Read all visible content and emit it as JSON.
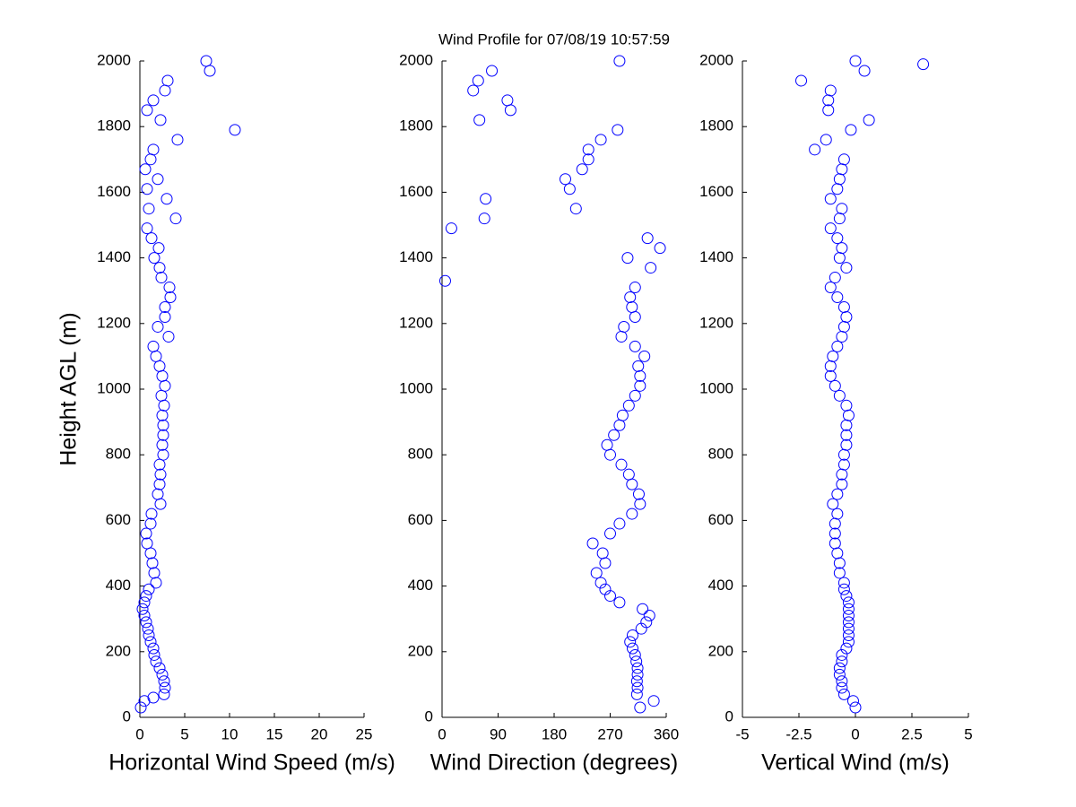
{
  "chart_data": [
    {
      "type": "scatter",
      "x_label": "Horizontal Wind Speed (m/s)",
      "y_label": "Height AGL (m)",
      "color": "#0000ff",
      "xlim": [
        0,
        25
      ],
      "xticks": [
        0,
        5,
        10,
        15,
        20,
        25
      ],
      "ylim": [
        0,
        2000
      ],
      "yticks": [
        0,
        200,
        400,
        600,
        800,
        1000,
        1200,
        1400,
        1600,
        1800,
        2000
      ],
      "x": [
        0.1,
        0.5,
        1.5,
        2.7,
        2.8,
        2.7,
        2.5,
        2.2,
        1.8,
        1.6,
        1.5,
        1.2,
        1.0,
        0.9,
        0.7,
        0.5,
        0.3,
        0.5,
        0.7,
        1.0,
        1.8,
        1.6,
        1.4,
        1.2,
        0.8,
        0.7,
        1.2,
        1.3,
        2.3,
        2.0,
        2.2,
        2.3,
        2.2,
        2.6,
        2.5,
        2.6,
        2.6,
        2.5,
        2.7,
        2.4,
        2.8,
        2.5,
        2.2,
        1.8,
        1.5,
        3.2,
        2.0,
        2.8,
        2.8,
        3.4,
        3.3,
        2.4,
        2.2,
        1.6,
        2.1,
        1.3,
        0.8,
        4.0,
        1.0,
        3.0,
        0.8,
        2.0,
        0.6,
        1.2,
        1.5,
        4.2,
        10.6,
        2.3,
        0.8,
        1.5,
        2.8,
        3.1,
        7.8,
        7.4
      ],
      "y": [
        30,
        50,
        60,
        70,
        90,
        110,
        130,
        150,
        170,
        190,
        210,
        230,
        250,
        270,
        290,
        310,
        330,
        350,
        370,
        390,
        410,
        440,
        470,
        500,
        530,
        560,
        590,
        620,
        650,
        680,
        710,
        740,
        770,
        800,
        830,
        860,
        890,
        920,
        950,
        980,
        1010,
        1040,
        1070,
        1100,
        1130,
        1160,
        1190,
        1220,
        1250,
        1280,
        1310,
        1340,
        1370,
        1400,
        1430,
        1460,
        1490,
        1520,
        1550,
        1580,
        1610,
        1640,
        1670,
        1700,
        1730,
        1760,
        1790,
        1820,
        1850,
        1880,
        1910,
        1940,
        1970,
        2000
      ]
    },
    {
      "type": "scatter",
      "title": "Wind Profile for  07/08/19 10:57:59",
      "x_label": "Wind Direction (degrees)",
      "color": "#0000ff",
      "xlim": [
        0,
        360
      ],
      "xticks": [
        0,
        90,
        180,
        270,
        360
      ],
      "ylim": [
        0,
        2000
      ],
      "yticks": [
        0,
        200,
        400,
        600,
        800,
        1000,
        1200,
        1400,
        1600,
        1800,
        2000
      ],
      "x": [
        318,
        340,
        313,
        314,
        313,
        314,
        314,
        312,
        310,
        306,
        302,
        306,
        320,
        328,
        333,
        322,
        285,
        270,
        262,
        255,
        248,
        262,
        258,
        242,
        270,
        285,
        305,
        318,
        316,
        305,
        300,
        288,
        270,
        265,
        276,
        285,
        290,
        300,
        310,
        318,
        318,
        315,
        325,
        310,
        288,
        292,
        310,
        305,
        302,
        310,
        5,
        335,
        298,
        350,
        330,
        15,
        68,
        215,
        70,
        205,
        198,
        225,
        235,
        235,
        255,
        282,
        60,
        110,
        105,
        50,
        58,
        80,
        285
      ],
      "y": [
        30,
        50,
        70,
        90,
        110,
        130,
        150,
        170,
        190,
        210,
        230,
        250,
        270,
        290,
        310,
        330,
        350,
        370,
        390,
        410,
        440,
        470,
        500,
        530,
        560,
        590,
        620,
        650,
        680,
        710,
        740,
        770,
        800,
        830,
        860,
        890,
        920,
        950,
        980,
        1010,
        1040,
        1070,
        1100,
        1130,
        1160,
        1190,
        1220,
        1250,
        1280,
        1310,
        1330,
        1370,
        1400,
        1430,
        1460,
        1490,
        1520,
        1550,
        1580,
        1610,
        1640,
        1670,
        1700,
        1730,
        1760,
        1790,
        1820,
        1850,
        1880,
        1910,
        1940,
        1970,
        2000
      ]
    },
    {
      "type": "scatter",
      "x_label": "Vertical Wind (m/s)",
      "color": "#0000ff",
      "xlim": [
        -5,
        5
      ],
      "xticks": [
        -5,
        -2.5,
        0,
        2.5,
        5
      ],
      "ylim": [
        0,
        2000
      ],
      "yticks": [
        0,
        200,
        400,
        600,
        800,
        1000,
        1200,
        1400,
        1600,
        1800,
        2000
      ],
      "x": [
        0.0,
        -0.1,
        -0.5,
        -0.6,
        -0.6,
        -0.7,
        -0.7,
        -0.6,
        -0.6,
        -0.4,
        -0.3,
        -0.3,
        -0.3,
        -0.3,
        -0.3,
        -0.3,
        -0.3,
        -0.4,
        -0.5,
        -0.5,
        -0.7,
        -0.7,
        -0.8,
        -0.9,
        -0.9,
        -0.9,
        -0.8,
        -1.0,
        -0.8,
        -0.6,
        -0.6,
        -0.5,
        -0.5,
        -0.4,
        -0.4,
        -0.4,
        -0.3,
        -0.4,
        -0.7,
        -0.9,
        -1.1,
        -1.1,
        -1.0,
        -0.8,
        -0.6,
        -0.5,
        -0.4,
        -0.5,
        -0.8,
        -1.1,
        -0.9,
        -0.4,
        -0.7,
        -0.6,
        -0.8,
        -1.1,
        -0.7,
        -0.6,
        -1.1,
        -0.8,
        -0.7,
        -0.6,
        -0.5,
        -1.8,
        -1.3,
        -0.2,
        0.6,
        -1.2,
        -1.2,
        -1.1,
        -2.4,
        0.4,
        3.0,
        0.0
      ],
      "y": [
        30,
        50,
        70,
        90,
        110,
        130,
        150,
        170,
        190,
        210,
        230,
        250,
        270,
        290,
        310,
        330,
        350,
        370,
        390,
        410,
        440,
        470,
        500,
        530,
        560,
        590,
        620,
        650,
        680,
        710,
        740,
        770,
        800,
        830,
        860,
        890,
        920,
        950,
        980,
        1010,
        1040,
        1070,
        1100,
        1130,
        1160,
        1190,
        1220,
        1250,
        1280,
        1310,
        1340,
        1370,
        1400,
        1430,
        1460,
        1490,
        1520,
        1550,
        1580,
        1610,
        1640,
        1670,
        1700,
        1730,
        1760,
        1790,
        1820,
        1850,
        1880,
        1910,
        1940,
        1970,
        1990,
        2000
      ]
    }
  ]
}
